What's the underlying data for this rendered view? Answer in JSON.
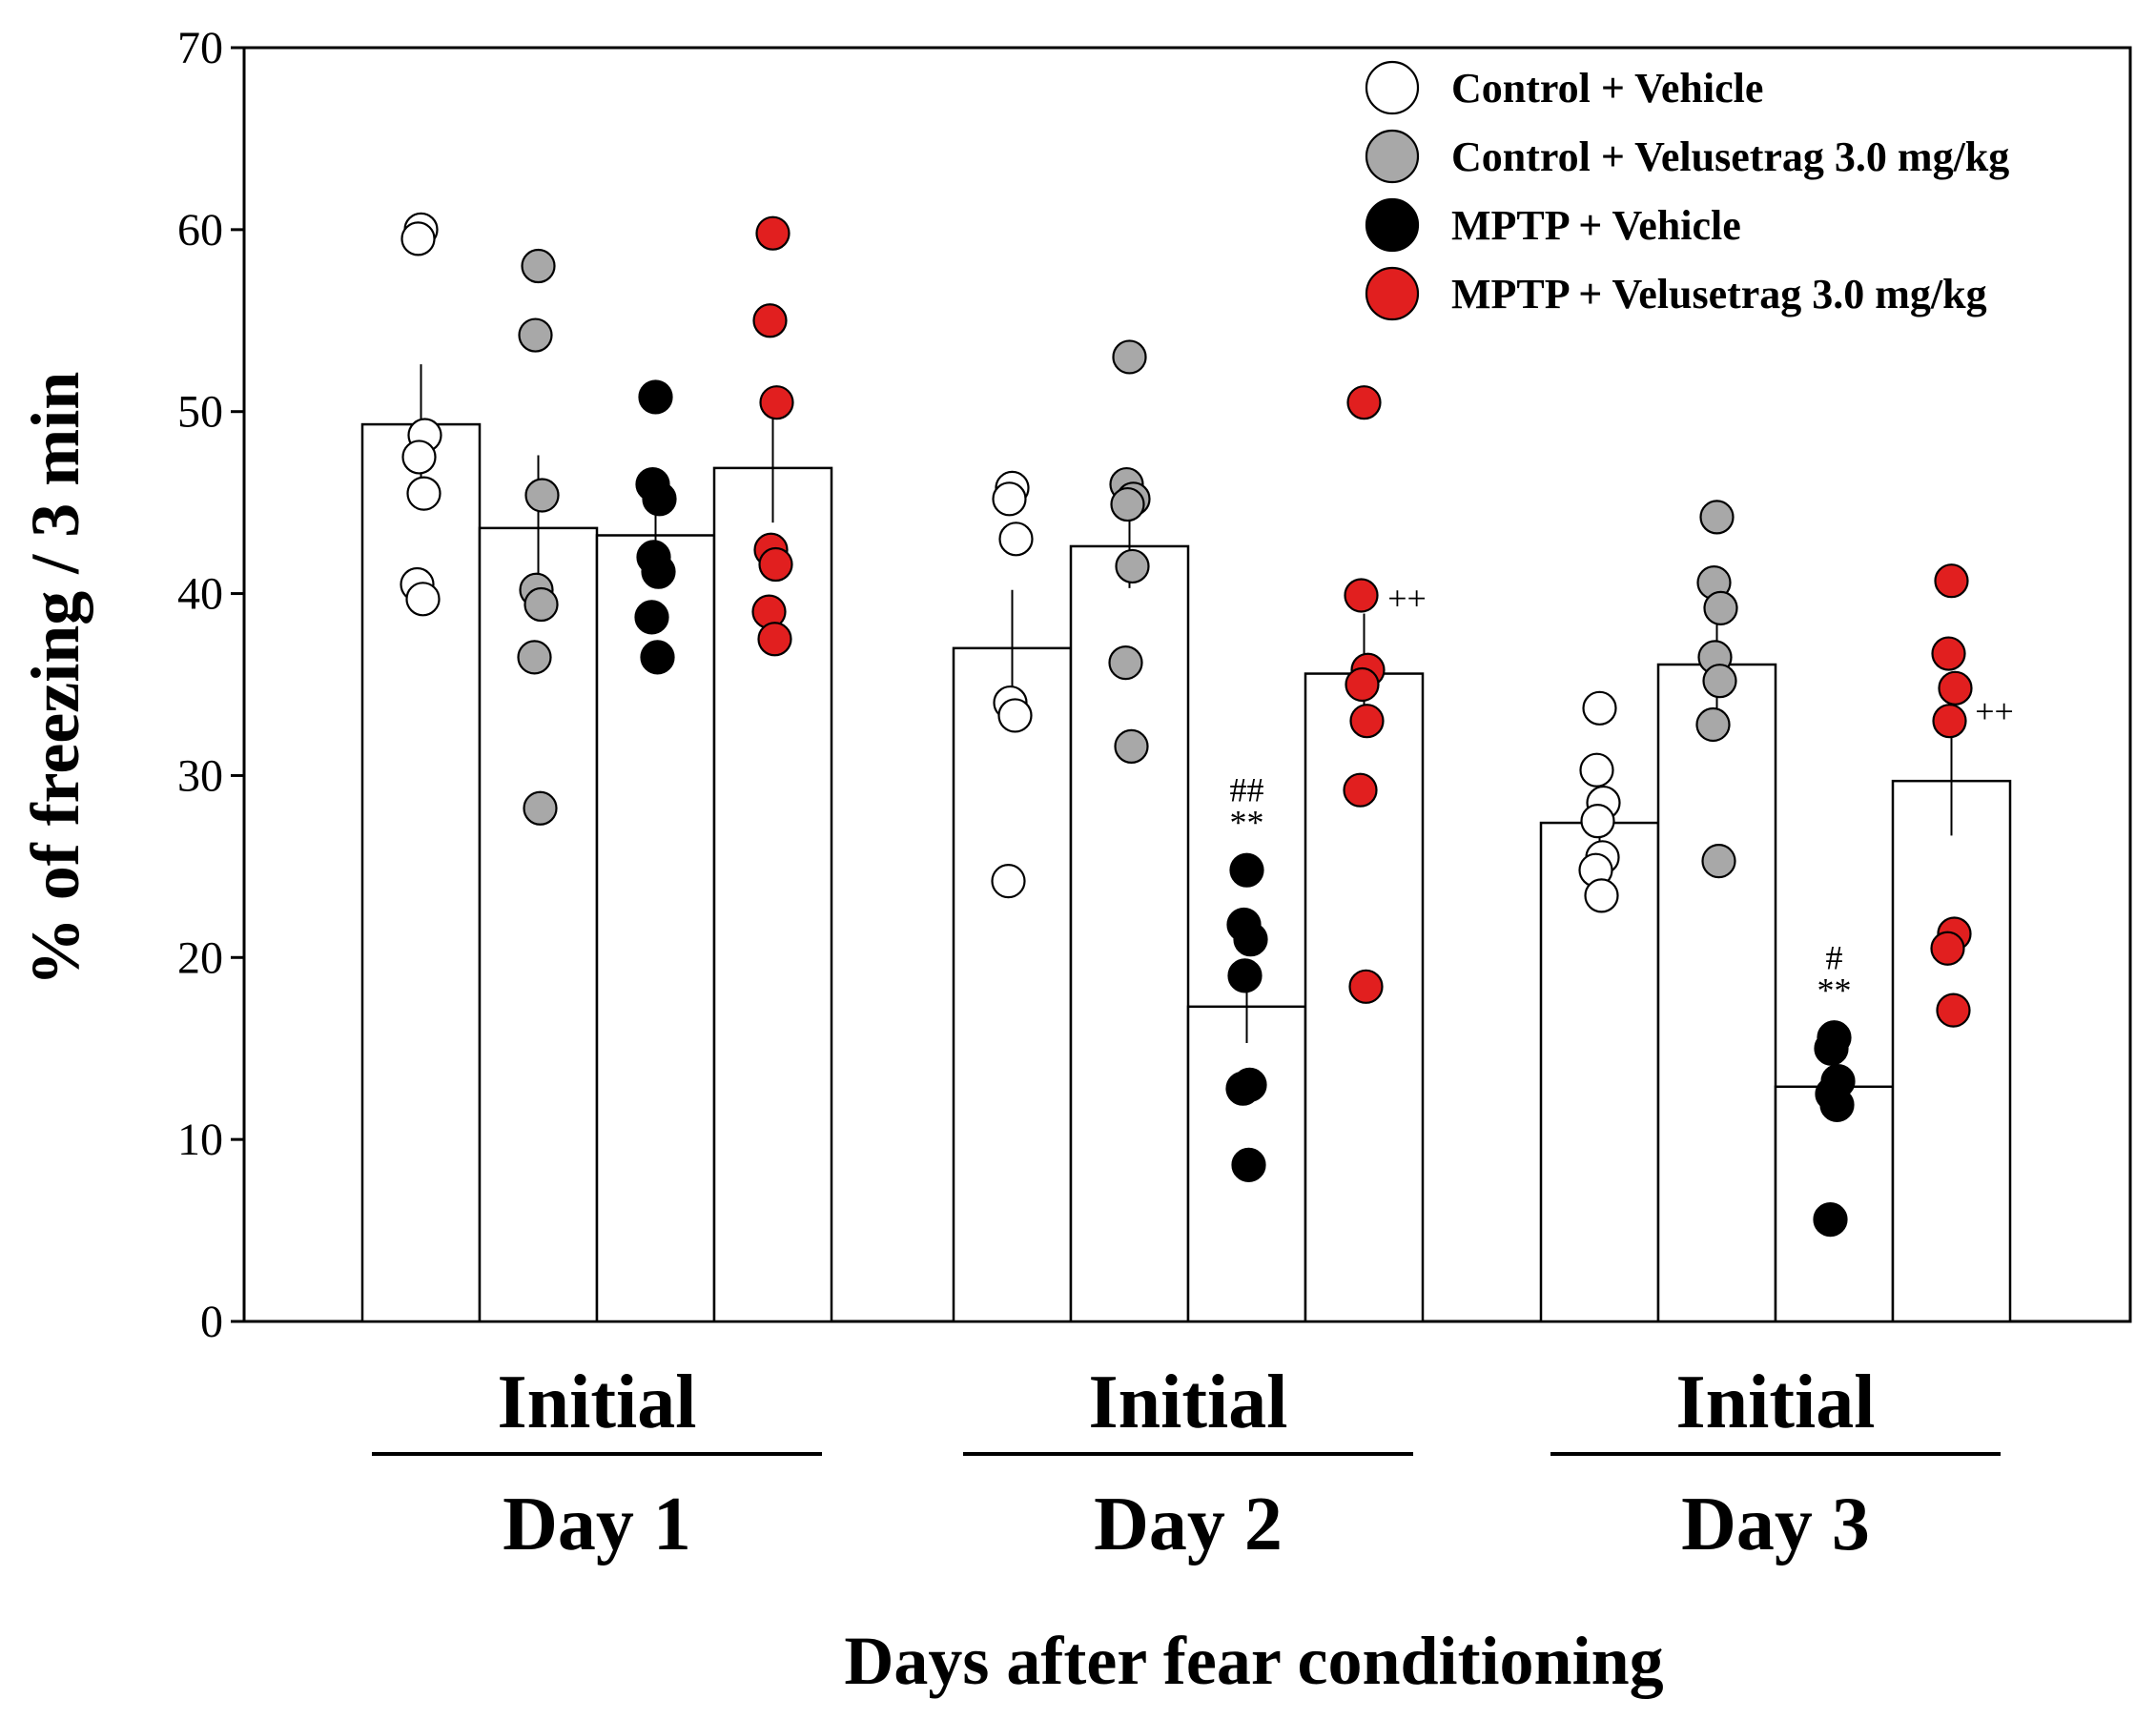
{
  "chart_data": {
    "type": "bar",
    "title": "",
    "xlabel": "Days after fear conditioning",
    "ylabel": "% of freezing / 3 min",
    "ylim": [
      0,
      70
    ],
    "yticks": [
      0,
      10,
      20,
      30,
      40,
      50,
      60,
      70
    ],
    "groups": [
      {
        "top": "Initial",
        "bottom": "Day 1"
      },
      {
        "top": "Initial",
        "bottom": "Day 2"
      },
      {
        "top": "Initial",
        "bottom": "Day 3"
      }
    ],
    "legend_position": "top-right",
    "series": [
      {
        "name": "Control + Vehicle",
        "color": "#ffffff",
        "means": [
          49.3,
          37.0,
          27.4
        ],
        "sem": [
          3.3,
          3.2,
          1.5
        ],
        "points": [
          [
            60.0,
            59.5,
            48.7,
            47.5,
            45.5,
            40.5,
            39.7
          ],
          [
            45.8,
            45.2,
            43.0,
            34.0,
            33.3,
            24.2
          ],
          [
            33.7,
            30.3,
            28.5,
            27.5,
            25.5,
            24.8,
            23.4
          ]
        ],
        "annotations": [
          "",
          "",
          ""
        ]
      },
      {
        "name": "Control + Velusetrag 3.0 mg/kg",
        "color": "#a8a8a8",
        "means": [
          43.6,
          42.6,
          36.1
        ],
        "sem": [
          4.0,
          2.3,
          2.6
        ],
        "points": [
          [
            58.0,
            54.2,
            45.4,
            40.2,
            39.4,
            36.5,
            28.2
          ],
          [
            53.0,
            46.0,
            45.2,
            44.9,
            41.5,
            36.2,
            31.6
          ],
          [
            44.2,
            40.6,
            39.2,
            36.5,
            35.2,
            32.8,
            25.3
          ]
        ],
        "annotations": [
          "",
          "",
          ""
        ]
      },
      {
        "name": "MPTP + Vehicle",
        "color": "#000000",
        "means": [
          43.2,
          17.3,
          12.9
        ],
        "sem": [
          2.0,
          2.0,
          1.6
        ],
        "points": [
          [
            50.8,
            46.0,
            45.2,
            42.0,
            41.2,
            38.7,
            36.5
          ],
          [
            24.8,
            21.8,
            21.0,
            19.0,
            13.0,
            12.8,
            8.6
          ],
          [
            15.6,
            15.0,
            13.2,
            12.5,
            11.9,
            5.6
          ]
        ],
        "annotations": [
          "",
          "##\n**",
          "#\n**"
        ]
      },
      {
        "name": "MPTP + Velusetrag 3.0 mg/kg",
        "color": "#e11f1f",
        "means": [
          46.9,
          35.6,
          29.7
        ],
        "sem": [
          3.0,
          3.3,
          3.0
        ],
        "points": [
          [
            59.8,
            55.0,
            50.5,
            42.4,
            41.6,
            39.0,
            37.5
          ],
          [
            50.5,
            39.9,
            35.8,
            35.0,
            33.0,
            29.2,
            18.4
          ],
          [
            40.7,
            36.7,
            34.8,
            33.0,
            21.3,
            20.5,
            17.1
          ]
        ],
        "annotations": [
          "",
          "++",
          "++"
        ]
      }
    ]
  }
}
